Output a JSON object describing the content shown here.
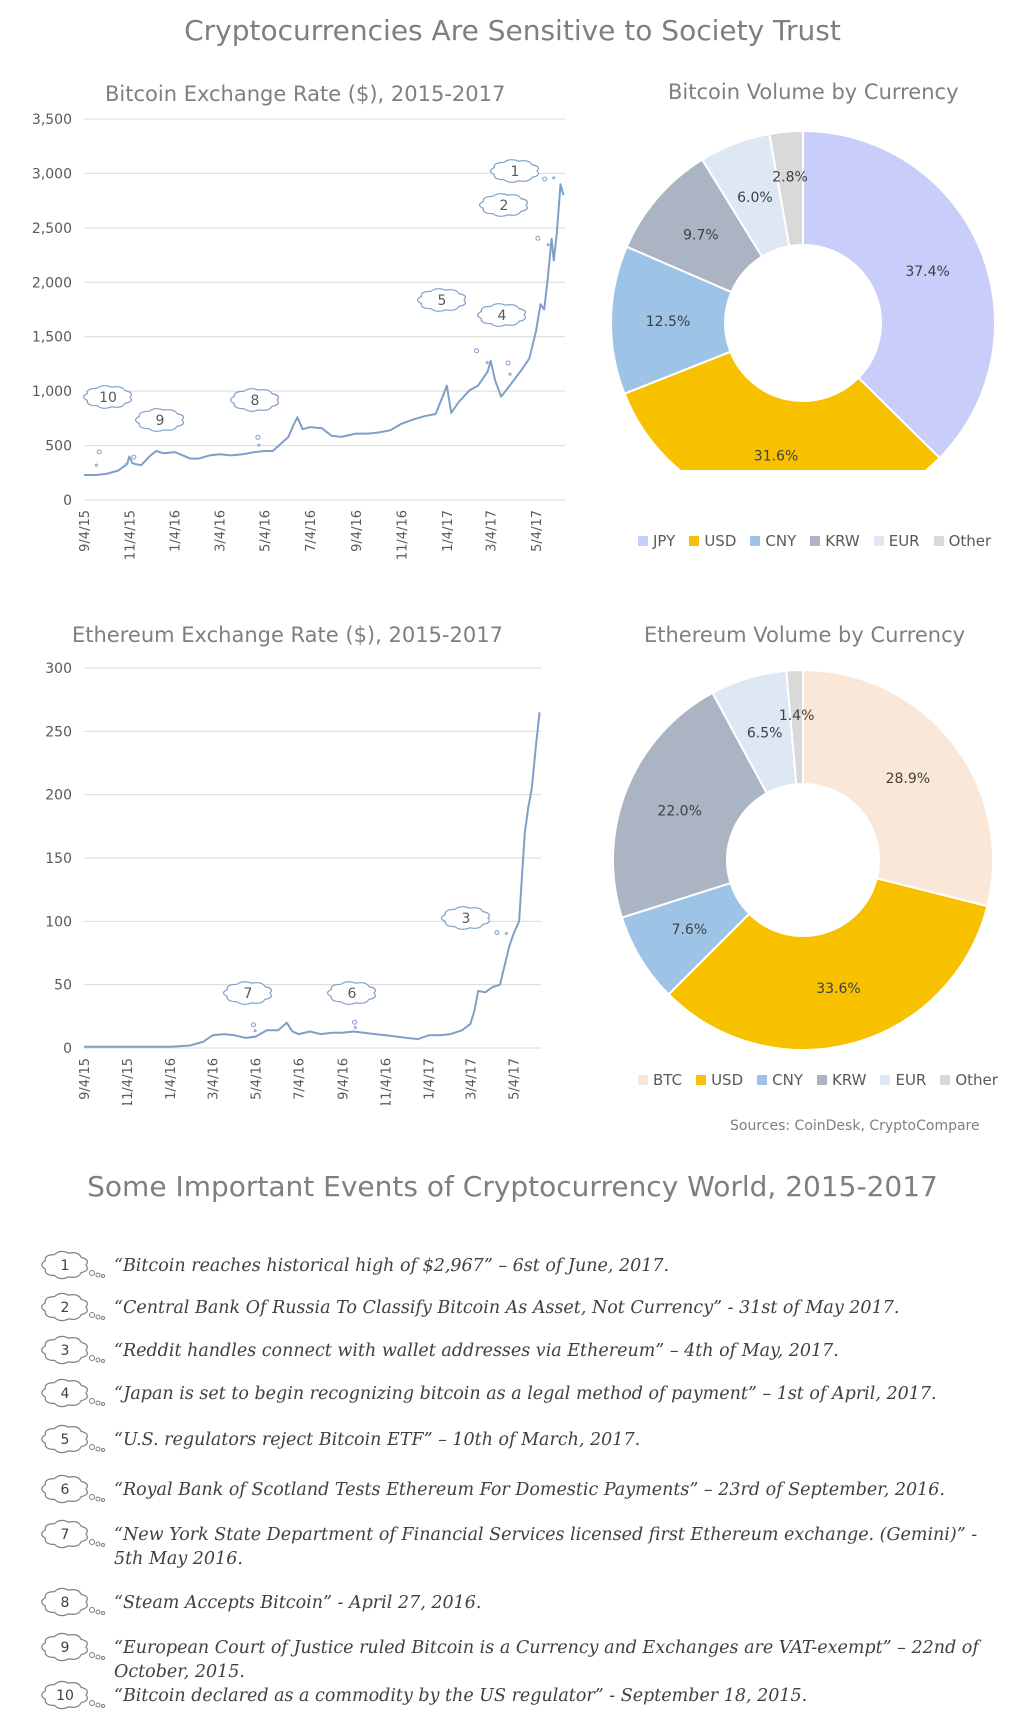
{
  "page": {
    "title": "Cryptocurrencies Are Sensitive to Society Trust",
    "sources": "Sources: CoinDesk, CryptoCompare",
    "events_title": "Some Important Events of Cryptocurrency World, 2015-2017"
  },
  "colors": {
    "line": "#7f9fc8",
    "grid": "#d9d9d9",
    "JPY": "#c9cdfa",
    "USD": "#f7c100",
    "CNY": "#9dc3e6",
    "KRW": "#aab4c2",
    "EUR": "#dde8f4",
    "Other": "#d9d9d9",
    "BTC": "#fbe7d7"
  },
  "chart_data": [
    {
      "type": "line",
      "title": "Bitcoin Exchange Rate ($), 2015-2017",
      "x_ticks": [
        "9/4/15",
        "11/4/15",
        "1/4/16",
        "3/4/16",
        "5/4/16",
        "7/4/16",
        "9/4/16",
        "11/4/16",
        "1/4/17",
        "3/4/17",
        "5/4/17"
      ],
      "x_domain": [
        "2015-09-04",
        "2017-06-12"
      ],
      "y_ticks": [
        "0",
        "500",
        "1,000",
        "1,500",
        "2,000",
        "2,500",
        "3,000",
        "3,500"
      ],
      "ylim": [
        0,
        3500
      ],
      "grid": true,
      "series": [
        {
          "x": [
            "2015-09-04",
            "2015-09-20",
            "2015-10-04",
            "2015-10-20",
            "2015-11-01",
            "2015-11-04",
            "2015-11-08",
            "2015-11-12",
            "2015-11-20",
            "2015-12-01",
            "2015-12-10",
            "2015-12-20",
            "2016-01-04",
            "2016-01-15",
            "2016-01-25",
            "2016-02-05",
            "2016-02-20",
            "2016-03-04",
            "2016-03-20",
            "2016-04-04",
            "2016-04-20",
            "2016-05-04",
            "2016-05-15",
            "2016-05-28",
            "2016-06-05",
            "2016-06-12",
            "2016-06-17",
            "2016-06-24",
            "2016-07-04",
            "2016-07-20",
            "2016-08-02",
            "2016-08-15",
            "2016-09-04",
            "2016-09-20",
            "2016-10-04",
            "2016-10-20",
            "2016-11-04",
            "2016-11-20",
            "2016-12-05",
            "2016-12-20",
            "2016-12-30",
            "2017-01-04",
            "2017-01-10",
            "2017-01-20",
            "2017-02-04",
            "2017-02-15",
            "2017-02-28",
            "2017-03-04",
            "2017-03-10",
            "2017-03-18",
            "2017-03-24",
            "2017-04-04",
            "2017-04-15",
            "2017-04-25",
            "2017-05-04",
            "2017-05-10",
            "2017-05-15",
            "2017-05-20",
            "2017-05-25",
            "2017-05-28",
            "2017-06-01",
            "2017-06-06",
            "2017-06-10"
          ],
          "y": [
            230,
            230,
            240,
            270,
            330,
            400,
            340,
            330,
            320,
            400,
            450,
            430,
            440,
            410,
            380,
            380,
            410,
            420,
            410,
            420,
            440,
            450,
            450,
            530,
            580,
            690,
            760,
            650,
            670,
            660,
            590,
            580,
            610,
            610,
            620,
            640,
            700,
            740,
            770,
            790,
            960,
            1050,
            800,
            900,
            1010,
            1050,
            1180,
            1280,
            1100,
            950,
            1000,
            1100,
            1200,
            1300,
            1550,
            1800,
            1750,
            2050,
            2400,
            2200,
            2450,
            2900,
            2800
          ]
        }
      ],
      "annotations": [
        {
          "label": "1",
          "x": "2017-06-06",
          "y": 2967
        },
        {
          "label": "2",
          "x": "2017-05-31",
          "y": 2300
        },
        {
          "label": "4",
          "x": "2017-04-01",
          "y": 1080
        },
        {
          "label": "5",
          "x": "2017-03-10",
          "y": 1180
        },
        {
          "label": "8",
          "x": "2016-04-27",
          "y": 450
        },
        {
          "label": "9",
          "x": "2015-10-22",
          "y": 270
        },
        {
          "label": "10",
          "x": "2015-09-18",
          "y": 230
        }
      ]
    },
    {
      "type": "pie",
      "title": "Bitcoin Volume by Currency",
      "categories": [
        "JPY",
        "USD",
        "CNY",
        "KRW",
        "EUR",
        "Other"
      ],
      "values": [
        37.4,
        31.6,
        12.5,
        9.7,
        6.0,
        2.8
      ],
      "labels": [
        "37.4%",
        "31.6%",
        "12.5%",
        "9.7%",
        "6.0%",
        "2.8%"
      ],
      "legend": "bottom"
    },
    {
      "type": "line",
      "title": "Ethereum Exchange Rate ($), 2015-2017",
      "x_ticks": [
        "9/4/15",
        "11/4/15",
        "1/4/16",
        "3/4/16",
        "5/4/16",
        "7/4/16",
        "9/4/16",
        "11/4/16",
        "1/4/17",
        "3/4/17",
        "5/4/17"
      ],
      "x_domain": [
        "2015-09-04",
        "2017-06-12"
      ],
      "y_ticks": [
        "0",
        "50",
        "100",
        "150",
        "200",
        "250",
        "300"
      ],
      "ylim": [
        0,
        300
      ],
      "grid": true,
      "series": [
        {
          "x": [
            "2015-09-04",
            "2015-10-04",
            "2015-11-04",
            "2015-12-04",
            "2016-01-04",
            "2016-02-01",
            "2016-02-20",
            "2016-03-04",
            "2016-03-20",
            "2016-04-04",
            "2016-04-20",
            "2016-05-04",
            "2016-05-20",
            "2016-06-05",
            "2016-06-17",
            "2016-06-25",
            "2016-07-04",
            "2016-07-20",
            "2016-08-04",
            "2016-08-20",
            "2016-09-04",
            "2016-09-20",
            "2016-10-04",
            "2016-10-20",
            "2016-11-04",
            "2016-11-20",
            "2016-12-04",
            "2016-12-20",
            "2017-01-04",
            "2017-01-20",
            "2017-02-04",
            "2017-02-20",
            "2017-03-04",
            "2017-03-10",
            "2017-03-15",
            "2017-03-25",
            "2017-04-04",
            "2017-04-15",
            "2017-04-28",
            "2017-05-04",
            "2017-05-12",
            "2017-05-20",
            "2017-05-25",
            "2017-05-30",
            "2017-06-05",
            "2017-06-10"
          ],
          "y": [
            1,
            1,
            1,
            1,
            1,
            2,
            5,
            10,
            11,
            10,
            8,
            9,
            14,
            14,
            20,
            13,
            11,
            13,
            11,
            12,
            12,
            13,
            12,
            11,
            10,
            9,
            8,
            7,
            10,
            10,
            11,
            14,
            19,
            30,
            45,
            44,
            48,
            50,
            80,
            90,
            100,
            170,
            190,
            205,
            240,
            265
          ]
        }
      ],
      "annotations": [
        {
          "label": "3",
          "x": "2017-05-04",
          "y": 90
        },
        {
          "label": "6",
          "x": "2016-09-23",
          "y": 13
        },
        {
          "label": "7",
          "x": "2016-05-05",
          "y": 10
        }
      ]
    },
    {
      "type": "pie",
      "title": "Ethereum Volume by Currency",
      "categories": [
        "BTC",
        "USD",
        "CNY",
        "KRW",
        "EUR",
        "Other"
      ],
      "values": [
        28.9,
        33.6,
        7.6,
        22.0,
        6.5,
        1.4
      ],
      "labels": [
        "28.9%",
        "33.6%",
        "7.6%",
        "22.0%",
        "6.5%",
        "1.4%"
      ],
      "legend": "bottom"
    }
  ],
  "events": [
    {
      "num": "1",
      "text": "“Bitcoin reaches historical high of $2,967” – 6st of June, 2017."
    },
    {
      "num": "2",
      "text": "“Central Bank Of Russia To Classify Bitcoin As Asset, Not Currency” - 31st of May 2017."
    },
    {
      "num": "3",
      "text": "“Reddit handles connect with wallet addresses via Ethereum” – 4th of May, 2017."
    },
    {
      "num": "4",
      "text": "“Japan is set to begin recognizing bitcoin as a legal method of payment” – 1st of April, 2017."
    },
    {
      "num": "5",
      "text": "“U.S. regulators reject Bitcoin ETF” – 10th of March, 2017."
    },
    {
      "num": "6",
      "text": "“Royal Bank of Scotland Tests Ethereum For Domestic Payments” – 23rd of September, 2016."
    },
    {
      "num": "7",
      "text": "“New York State Department of Financial Services licensed first Ethereum exchange. (Gemini)” - 5th May 2016."
    },
    {
      "num": "8",
      "text": "“Steam Accepts Bitcoin” - April 27, 2016."
    },
    {
      "num": "9",
      "text": "“European Court of Justice ruled Bitcoin is a Currency and Exchanges are VAT-exempt” – 22nd of October, 2015."
    },
    {
      "num": "10",
      "text": "“Bitcoin declared as a commodity by the US regulator” - September 18, 2015."
    }
  ]
}
